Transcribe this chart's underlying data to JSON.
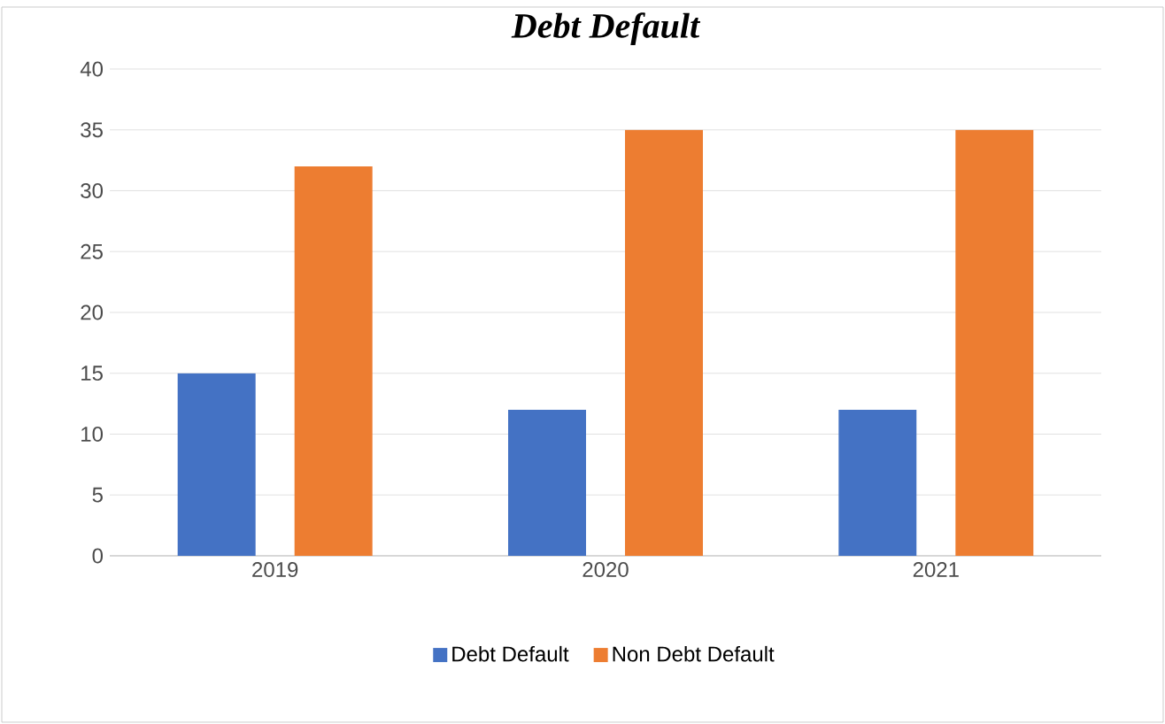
{
  "chart_data": {
    "type": "bar",
    "title": "Debt Default",
    "categories": [
      "2019",
      "2020",
      "2021"
    ],
    "series": [
      {
        "name": "Debt Default",
        "color": "#4472c4",
        "values": [
          15,
          12,
          12
        ]
      },
      {
        "name": "Non Debt Default",
        "color": "#ed7d31",
        "values": [
          32,
          35,
          35
        ]
      }
    ],
    "ylim": [
      0,
      40
    ],
    "yticks": [
      0,
      5,
      10,
      15,
      20,
      25,
      30,
      35,
      40
    ],
    "grid": "y",
    "legend": "bottom"
  }
}
